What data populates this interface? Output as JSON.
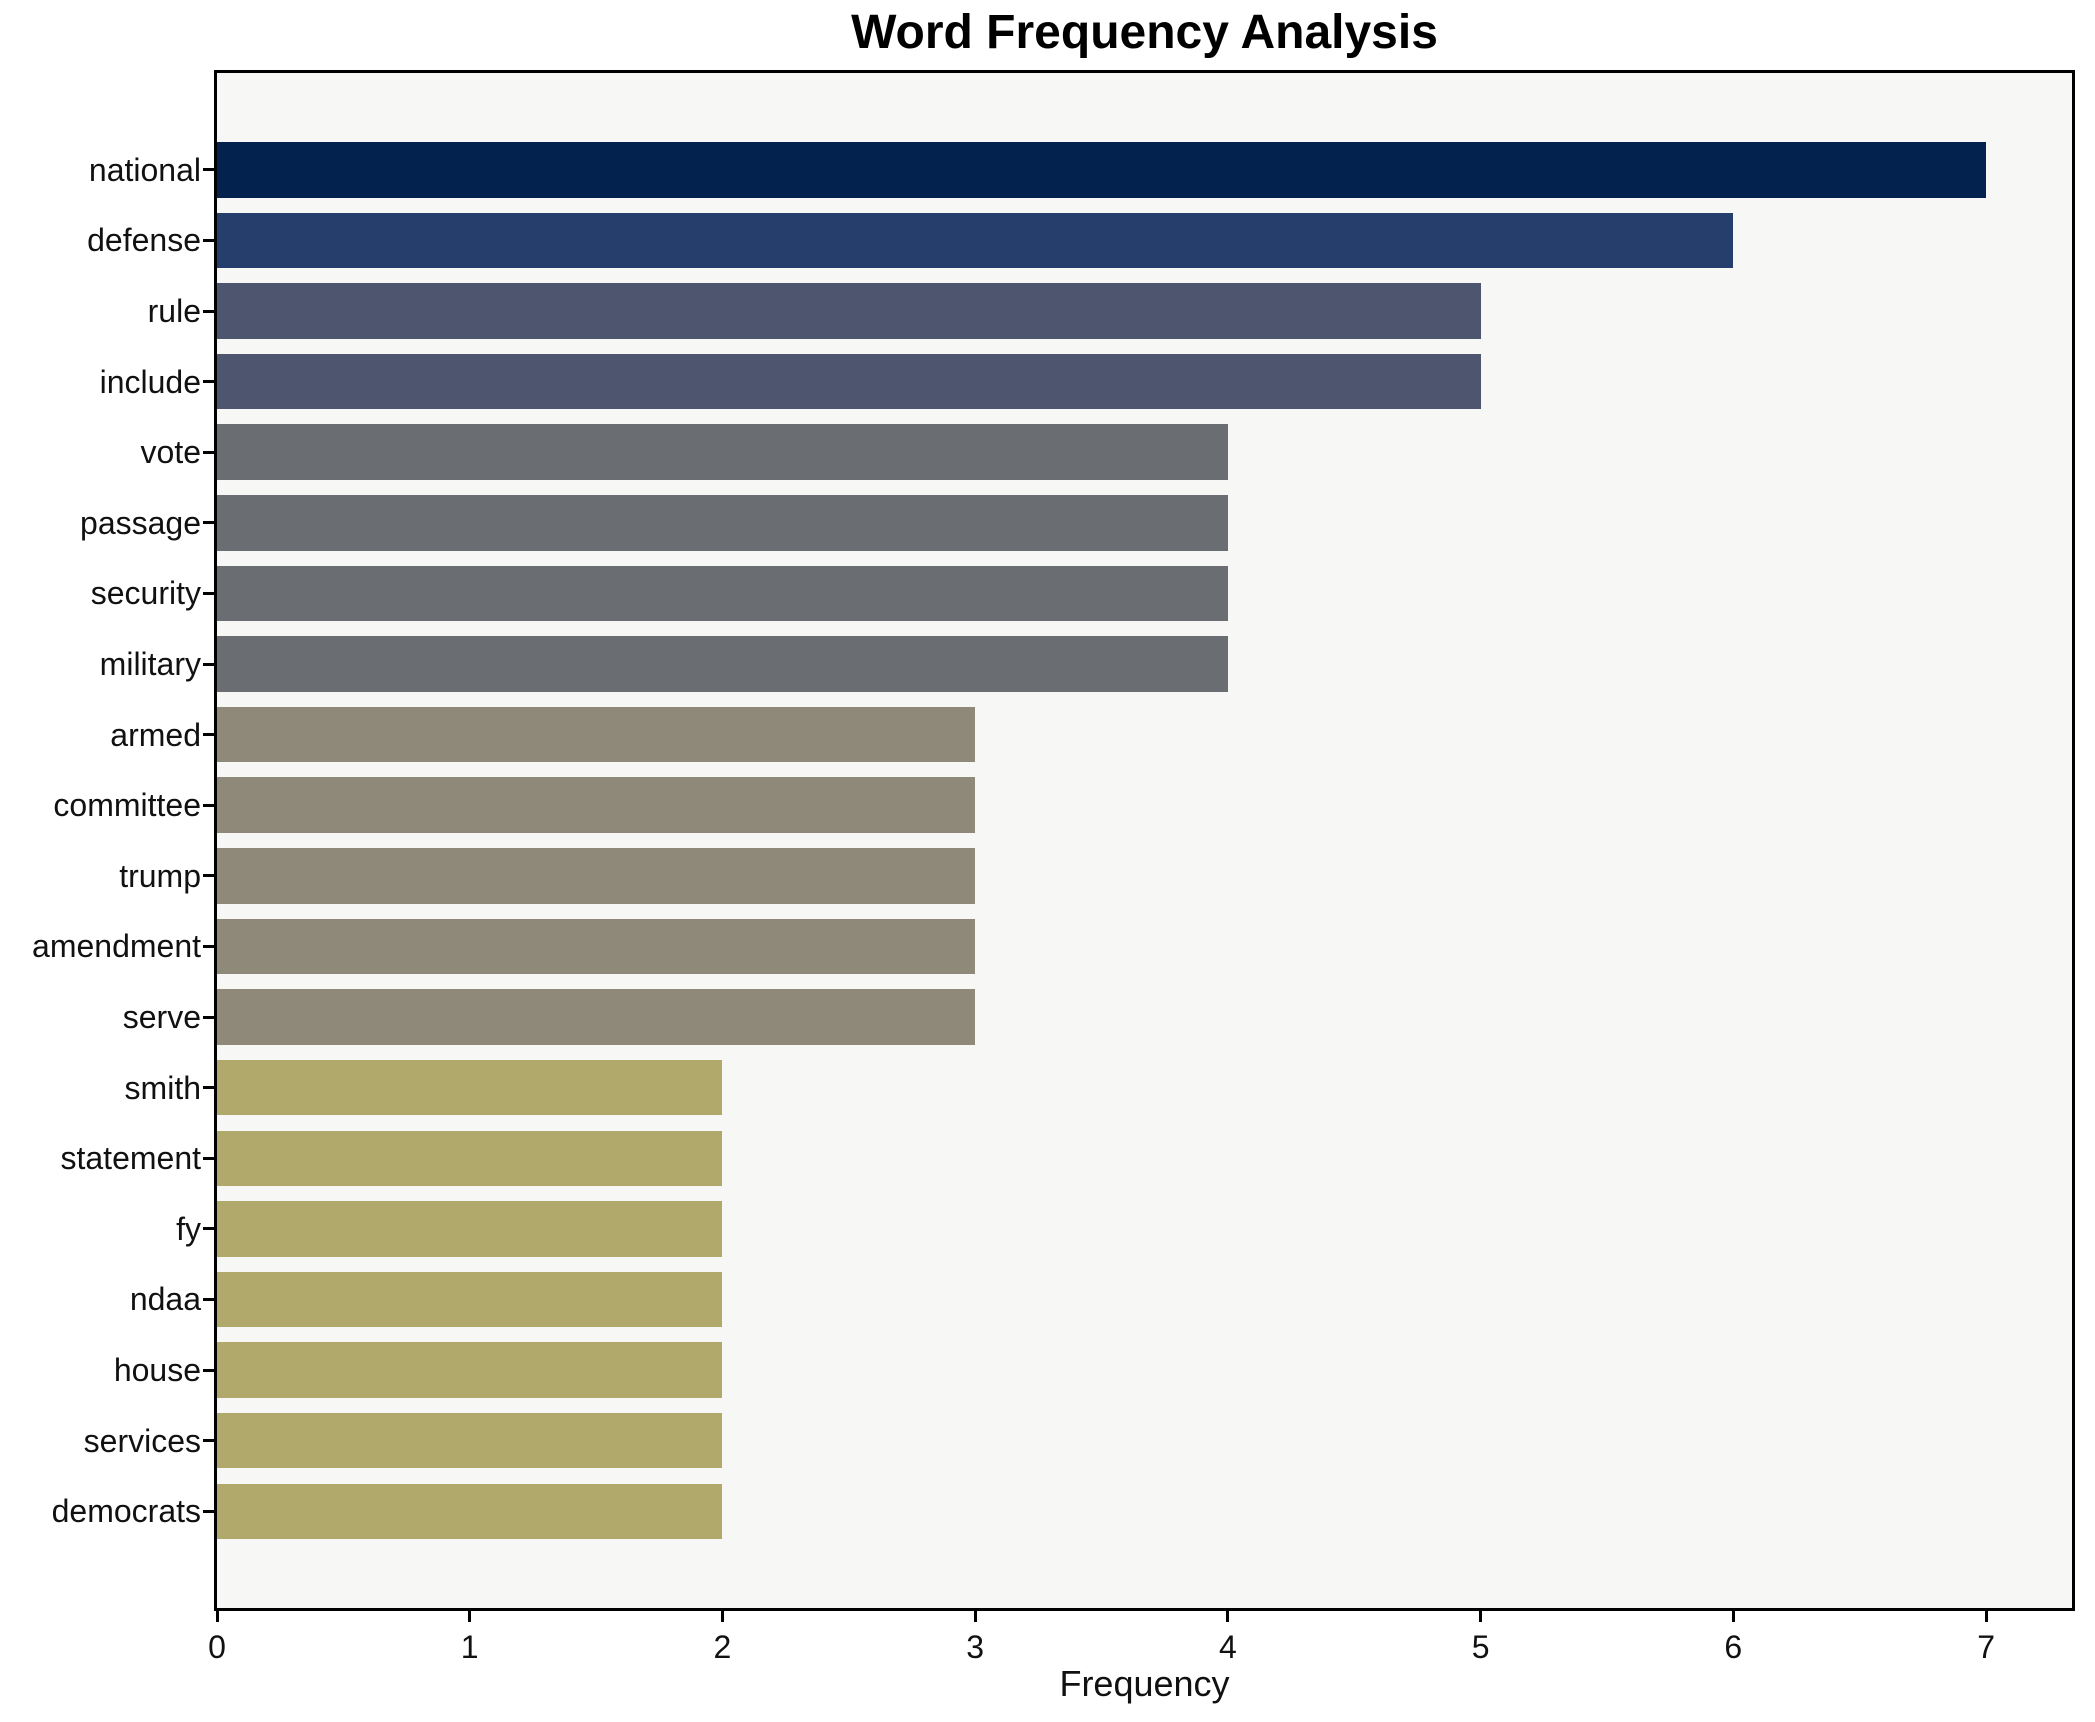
{
  "title": "Word Frequency Analysis",
  "chart_data": {
    "type": "bar",
    "orientation": "horizontal",
    "title": "Word Frequency Analysis",
    "xlabel": "Frequency",
    "ylabel": "",
    "categories": [
      "national",
      "defense",
      "rule",
      "include",
      "vote",
      "passage",
      "security",
      "military",
      "armed",
      "committee",
      "trump",
      "amendment",
      "serve",
      "smith",
      "statement",
      "fy",
      "ndaa",
      "house",
      "services",
      "democrats"
    ],
    "values": [
      7,
      6,
      5,
      5,
      4,
      4,
      4,
      4,
      3,
      3,
      3,
      3,
      3,
      2,
      2,
      2,
      2,
      2,
      2,
      2
    ],
    "xlim": [
      0,
      7.34
    ],
    "xticks": [
      "0",
      "1",
      "2",
      "3",
      "4",
      "5",
      "6",
      "7"
    ],
    "grid": false,
    "legend": null,
    "colors": {
      "bar_color_by_value": {
        "7": "#03224e",
        "6": "#253e6b",
        "5": "#4d556f",
        "4": "#6a6d72",
        "3": "#8f8979",
        "2": "#b1a96b"
      },
      "plot_background": "#f7f7f6",
      "frame_color": "#000000",
      "text_color": "#111111"
    }
  }
}
